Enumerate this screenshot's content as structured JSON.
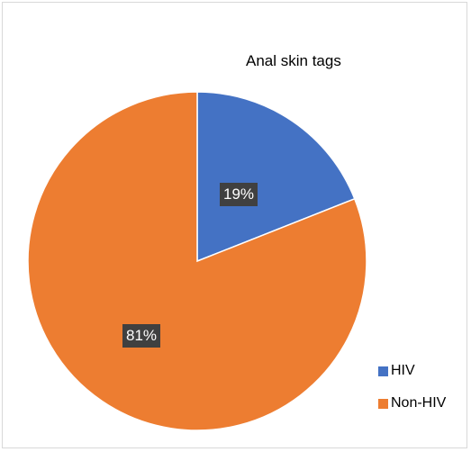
{
  "chart_data": {
    "type": "pie",
    "title": "Anal skin tags",
    "categories": [
      "HIV",
      "Non-HIV"
    ],
    "values": [
      19,
      81
    ],
    "data_labels": [
      "19%",
      "81%"
    ],
    "colors": [
      "#4472C4",
      "#ED7D31"
    ],
    "legend_position": "bottom-right"
  },
  "legend": {
    "items": [
      {
        "label": "HIV",
        "color": "#4472C4"
      },
      {
        "label": "Non-HIV",
        "color": "#ED7D31"
      }
    ]
  }
}
